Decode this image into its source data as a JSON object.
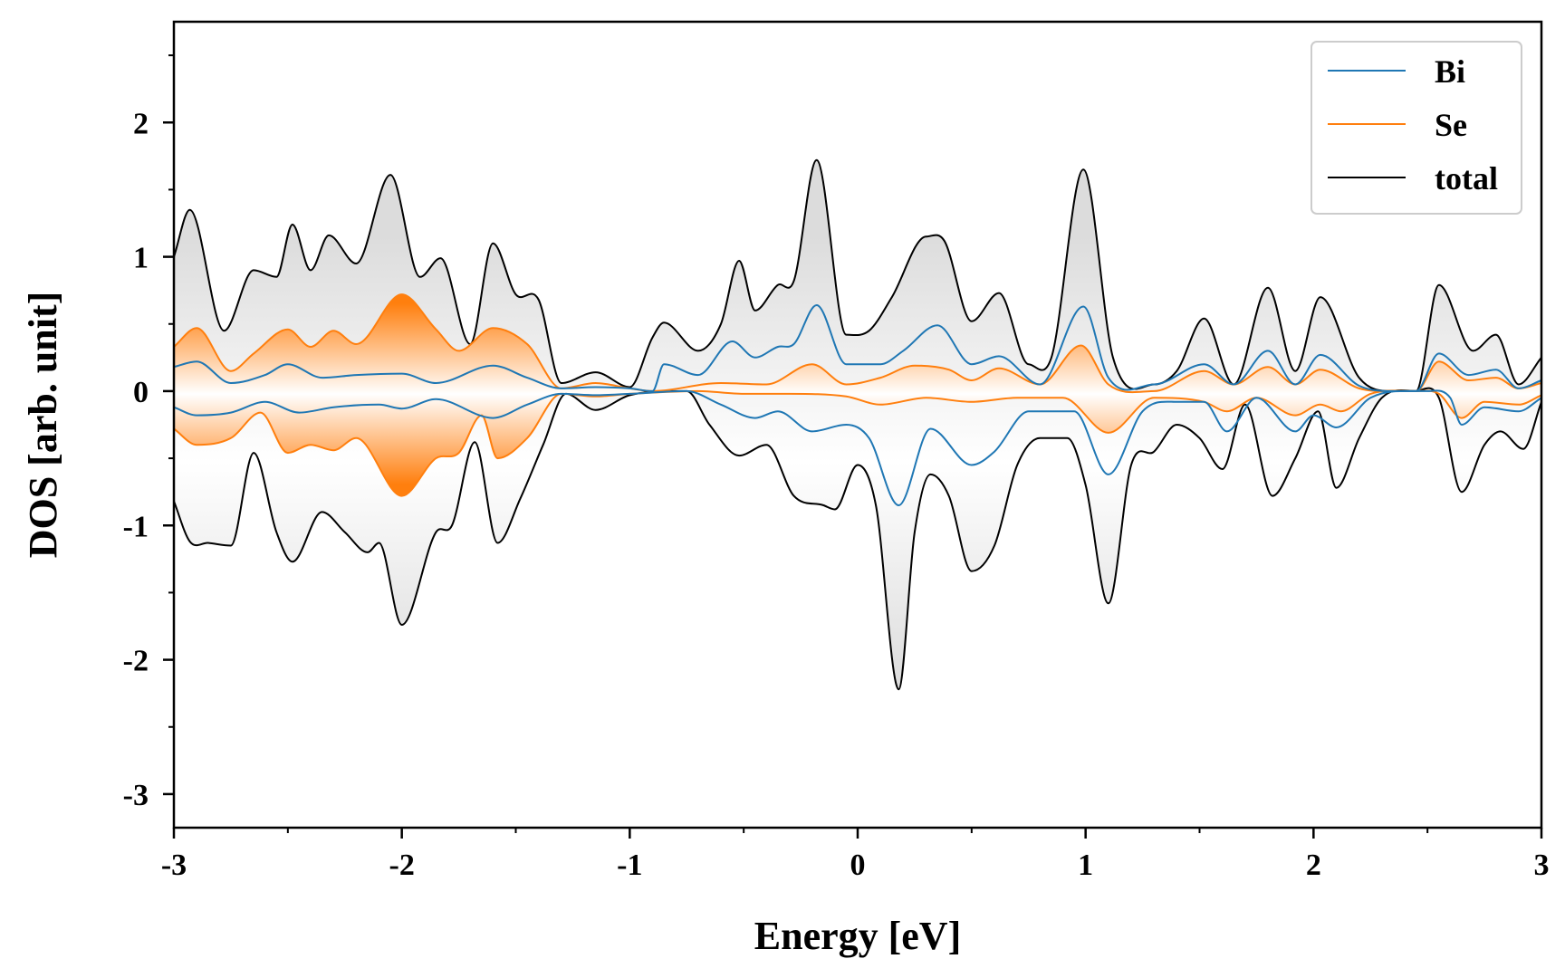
{
  "chart_data": {
    "type": "line",
    "xlabel": "Energy [eV]",
    "ylabel": "DOS [arb. unit]",
    "xlim": [
      -3,
      3
    ],
    "ylim": [
      -3.25,
      2.75
    ],
    "xticks": [
      -3,
      -2,
      -1,
      0,
      1,
      2,
      3
    ],
    "xtick_labels": [
      "-3",
      "-2",
      "-1",
      "0",
      "1",
      "2",
      "3"
    ],
    "yticks": [
      2,
      1,
      0,
      -1,
      -2,
      -3
    ],
    "ytick_labels": [
      "2",
      "1",
      "0",
      "-1",
      "-2",
      "-3"
    ],
    "legend_position": "top-right",
    "grid": false,
    "series": [
      {
        "name": "Bi",
        "color": "#1f77b4",
        "up": [
          [
            -3,
            0.18
          ],
          [
            -2.9,
            0.22
          ],
          [
            -2.75,
            0.06
          ],
          [
            -2.6,
            0.12
          ],
          [
            -2.5,
            0.2
          ],
          [
            -2.35,
            0.1
          ],
          [
            -2.2,
            0.12
          ],
          [
            -2.0,
            0.13
          ],
          [
            -1.85,
            0.06
          ],
          [
            -1.6,
            0.19
          ],
          [
            -1.45,
            0.1
          ],
          [
            -1.3,
            0.02
          ],
          [
            -1.15,
            0.03
          ],
          [
            -1.0,
            0.02
          ],
          [
            -0.9,
            0.0
          ],
          [
            -0.85,
            0.2
          ],
          [
            -0.7,
            0.12
          ],
          [
            -0.55,
            0.37
          ],
          [
            -0.45,
            0.25
          ],
          [
            -0.35,
            0.33
          ],
          [
            -0.28,
            0.35
          ],
          [
            -0.18,
            0.64
          ],
          [
            -0.05,
            0.2
          ],
          [
            0.1,
            0.2
          ],
          [
            0.2,
            0.3
          ],
          [
            0.35,
            0.49
          ],
          [
            0.5,
            0.2
          ],
          [
            0.62,
            0.26
          ],
          [
            0.8,
            0.05
          ],
          [
            0.99,
            0.63
          ],
          [
            1.1,
            0.1
          ],
          [
            1.3,
            0.05
          ],
          [
            1.52,
            0.2
          ],
          [
            1.65,
            0.05
          ],
          [
            1.8,
            0.3
          ],
          [
            1.92,
            0.05
          ],
          [
            2.03,
            0.27
          ],
          [
            2.2,
            0.04
          ],
          [
            2.35,
            0.0
          ],
          [
            2.45,
            0.0
          ],
          [
            2.55,
            0.28
          ],
          [
            2.68,
            0.12
          ],
          [
            2.8,
            0.16
          ],
          [
            2.9,
            0.02
          ],
          [
            3.0,
            0.08
          ]
        ],
        "down": [
          [
            -3,
            -0.12
          ],
          [
            -2.9,
            -0.18
          ],
          [
            -2.75,
            -0.16
          ],
          [
            -2.6,
            -0.08
          ],
          [
            -2.45,
            -0.16
          ],
          [
            -2.3,
            -0.12
          ],
          [
            -2.1,
            -0.1
          ],
          [
            -2.0,
            -0.13
          ],
          [
            -1.85,
            -0.06
          ],
          [
            -1.6,
            -0.2
          ],
          [
            -1.45,
            -0.1
          ],
          [
            -1.3,
            -0.02
          ],
          [
            -1.15,
            -0.03
          ],
          [
            -1.0,
            -0.02
          ],
          [
            -0.75,
            0.0
          ],
          [
            -0.6,
            -0.1
          ],
          [
            -0.45,
            -0.2
          ],
          [
            -0.35,
            -0.15
          ],
          [
            -0.2,
            -0.3
          ],
          [
            -0.05,
            -0.25
          ],
          [
            0.05,
            -0.35
          ],
          [
            0.18,
            -0.85
          ],
          [
            0.32,
            -0.28
          ],
          [
            0.5,
            -0.55
          ],
          [
            0.6,
            -0.45
          ],
          [
            0.75,
            -0.15
          ],
          [
            0.95,
            -0.15
          ],
          [
            1.1,
            -0.62
          ],
          [
            1.25,
            -0.15
          ],
          [
            1.4,
            -0.08
          ],
          [
            1.52,
            -0.08
          ],
          [
            1.62,
            -0.3
          ],
          [
            1.75,
            -0.05
          ],
          [
            1.92,
            -0.3
          ],
          [
            2.0,
            -0.18
          ],
          [
            2.1,
            -0.27
          ],
          [
            2.25,
            -0.05
          ],
          [
            2.4,
            0.0
          ],
          [
            2.5,
            0.0
          ],
          [
            2.6,
            -0.05
          ],
          [
            2.65,
            -0.25
          ],
          [
            2.75,
            -0.12
          ],
          [
            2.9,
            -0.15
          ],
          [
            3.0,
            -0.05
          ]
        ]
      },
      {
        "name": "Se",
        "color": "#ff7f0e",
        "up": [
          [
            -3,
            0.33
          ],
          [
            -2.9,
            0.47
          ],
          [
            -2.75,
            0.15
          ],
          [
            -2.65,
            0.28
          ],
          [
            -2.5,
            0.46
          ],
          [
            -2.4,
            0.33
          ],
          [
            -2.3,
            0.45
          ],
          [
            -2.2,
            0.35
          ],
          [
            -2.0,
            0.72
          ],
          [
            -1.85,
            0.46
          ],
          [
            -1.75,
            0.3
          ],
          [
            -1.6,
            0.47
          ],
          [
            -1.45,
            0.35
          ],
          [
            -1.3,
            0.02
          ],
          [
            -1.15,
            0.06
          ],
          [
            -1.0,
            0.02
          ],
          [
            -0.9,
            0.0
          ],
          [
            -0.6,
            0.06
          ],
          [
            -0.4,
            0.05
          ],
          [
            -0.2,
            0.2
          ],
          [
            -0.05,
            0.05
          ],
          [
            0.1,
            0.1
          ],
          [
            0.25,
            0.19
          ],
          [
            0.4,
            0.16
          ],
          [
            0.5,
            0.08
          ],
          [
            0.62,
            0.17
          ],
          [
            0.8,
            0.05
          ],
          [
            0.98,
            0.34
          ],
          [
            1.1,
            0.05
          ],
          [
            1.3,
            0.0
          ],
          [
            1.52,
            0.15
          ],
          [
            1.65,
            0.05
          ],
          [
            1.8,
            0.18
          ],
          [
            1.92,
            0.05
          ],
          [
            2.03,
            0.16
          ],
          [
            2.2,
            0.02
          ],
          [
            2.35,
            0.0
          ],
          [
            2.45,
            0.0
          ],
          [
            2.55,
            0.22
          ],
          [
            2.68,
            0.08
          ],
          [
            2.8,
            0.1
          ],
          [
            2.9,
            0.02
          ],
          [
            3.0,
            0.06
          ]
        ],
        "down": [
          [
            -3,
            -0.28
          ],
          [
            -2.9,
            -0.4
          ],
          [
            -2.75,
            -0.35
          ],
          [
            -2.62,
            -0.16
          ],
          [
            -2.5,
            -0.46
          ],
          [
            -2.4,
            -0.4
          ],
          [
            -2.3,
            -0.44
          ],
          [
            -2.2,
            -0.35
          ],
          [
            -2.0,
            -0.78
          ],
          [
            -1.85,
            -0.5
          ],
          [
            -1.75,
            -0.46
          ],
          [
            -1.65,
            -0.18
          ],
          [
            -1.58,
            -0.5
          ],
          [
            -1.45,
            -0.35
          ],
          [
            -1.3,
            -0.02
          ],
          [
            -1.15,
            -0.04
          ],
          [
            -1.0,
            -0.02
          ],
          [
            -0.7,
            0.0
          ],
          [
            -0.5,
            -0.02
          ],
          [
            -0.3,
            -0.02
          ],
          [
            -0.05,
            -0.04
          ],
          [
            0.1,
            -0.1
          ],
          [
            0.3,
            -0.05
          ],
          [
            0.5,
            -0.08
          ],
          [
            0.7,
            -0.05
          ],
          [
            0.9,
            -0.05
          ],
          [
            1.1,
            -0.31
          ],
          [
            1.3,
            -0.05
          ],
          [
            1.52,
            -0.08
          ],
          [
            1.62,
            -0.15
          ],
          [
            1.75,
            -0.05
          ],
          [
            1.92,
            -0.18
          ],
          [
            2.03,
            -0.1
          ],
          [
            2.12,
            -0.15
          ],
          [
            2.25,
            -0.02
          ],
          [
            2.45,
            0.0
          ],
          [
            2.55,
            -0.02
          ],
          [
            2.65,
            -0.2
          ],
          [
            2.75,
            -0.08
          ],
          [
            2.9,
            -0.1
          ],
          [
            3.0,
            -0.03
          ]
        ]
      },
      {
        "name": "total",
        "color": "#000000",
        "up": [
          [
            -3,
            1.0
          ],
          [
            -2.93,
            1.35
          ],
          [
            -2.78,
            0.45
          ],
          [
            -2.65,
            0.9
          ],
          [
            -2.55,
            0.85
          ],
          [
            -2.48,
            1.24
          ],
          [
            -2.4,
            0.9
          ],
          [
            -2.32,
            1.16
          ],
          [
            -2.2,
            0.95
          ],
          [
            -2.05,
            1.61
          ],
          [
            -1.92,
            0.85
          ],
          [
            -1.83,
            0.99
          ],
          [
            -1.7,
            0.35
          ],
          [
            -1.6,
            1.1
          ],
          [
            -1.5,
            0.72
          ],
          [
            -1.4,
            0.68
          ],
          [
            -1.3,
            0.06
          ],
          [
            -1.15,
            0.14
          ],
          [
            -1.0,
            0.03
          ],
          [
            -0.9,
            0.4
          ],
          [
            -0.85,
            0.51
          ],
          [
            -0.7,
            0.3
          ],
          [
            -0.6,
            0.5
          ],
          [
            -0.52,
            0.97
          ],
          [
            -0.45,
            0.6
          ],
          [
            -0.35,
            0.79
          ],
          [
            -0.28,
            0.82
          ],
          [
            -0.18,
            1.72
          ],
          [
            -0.05,
            0.42
          ],
          [
            0.05,
            0.45
          ],
          [
            0.15,
            0.7
          ],
          [
            0.3,
            1.15
          ],
          [
            0.38,
            1.12
          ],
          [
            0.5,
            0.52
          ],
          [
            0.62,
            0.73
          ],
          [
            0.75,
            0.2
          ],
          [
            0.85,
            0.25
          ],
          [
            0.99,
            1.65
          ],
          [
            1.12,
            0.25
          ],
          [
            1.3,
            0.05
          ],
          [
            1.4,
            0.15
          ],
          [
            1.52,
            0.54
          ],
          [
            1.65,
            0.05
          ],
          [
            1.8,
            0.77
          ],
          [
            1.92,
            0.15
          ],
          [
            2.03,
            0.7
          ],
          [
            2.2,
            0.1
          ],
          [
            2.35,
            0.0
          ],
          [
            2.45,
            0.0
          ],
          [
            2.55,
            0.79
          ],
          [
            2.7,
            0.3
          ],
          [
            2.8,
            0.42
          ],
          [
            2.9,
            0.05
          ],
          [
            3.0,
            0.25
          ]
        ],
        "down": [
          [
            -3,
            -0.82
          ],
          [
            -2.93,
            -1.12
          ],
          [
            -2.85,
            -1.13
          ],
          [
            -2.75,
            -1.15
          ],
          [
            -2.65,
            -0.46
          ],
          [
            -2.55,
            -1.05
          ],
          [
            -2.48,
            -1.27
          ],
          [
            -2.35,
            -0.9
          ],
          [
            -2.25,
            -1.05
          ],
          [
            -2.15,
            -1.2
          ],
          [
            -2.1,
            -1.13
          ],
          [
            -2.0,
            -1.74
          ],
          [
            -1.85,
            -1.05
          ],
          [
            -1.78,
            -1.0
          ],
          [
            -1.68,
            -0.38
          ],
          [
            -1.58,
            -1.13
          ],
          [
            -1.48,
            -0.8
          ],
          [
            -1.38,
            -0.4
          ],
          [
            -1.28,
            -0.02
          ],
          [
            -1.15,
            -0.14
          ],
          [
            -1.0,
            -0.03
          ],
          [
            -0.75,
            0.0
          ],
          [
            -0.65,
            -0.25
          ],
          [
            -0.52,
            -0.48
          ],
          [
            -0.4,
            -0.4
          ],
          [
            -0.28,
            -0.78
          ],
          [
            -0.15,
            -0.85
          ],
          [
            -0.1,
            -0.88
          ],
          [
            0.0,
            -0.55
          ],
          [
            0.08,
            -0.85
          ],
          [
            0.18,
            -2.22
          ],
          [
            0.25,
            -1.05
          ],
          [
            0.32,
            -0.62
          ],
          [
            0.4,
            -0.78
          ],
          [
            0.5,
            -1.34
          ],
          [
            0.6,
            -1.15
          ],
          [
            0.7,
            -0.55
          ],
          [
            0.8,
            -0.35
          ],
          [
            0.92,
            -0.35
          ],
          [
            1.0,
            -0.7
          ],
          [
            1.1,
            -1.58
          ],
          [
            1.2,
            -0.55
          ],
          [
            1.3,
            -0.45
          ],
          [
            1.4,
            -0.25
          ],
          [
            1.5,
            -0.35
          ],
          [
            1.6,
            -0.58
          ],
          [
            1.7,
            -0.1
          ],
          [
            1.82,
            -0.78
          ],
          [
            1.92,
            -0.5
          ],
          [
            2.02,
            -0.15
          ],
          [
            2.1,
            -0.72
          ],
          [
            2.2,
            -0.35
          ],
          [
            2.3,
            -0.05
          ],
          [
            2.45,
            0.0
          ],
          [
            2.55,
            -0.05
          ],
          [
            2.65,
            -0.75
          ],
          [
            2.75,
            -0.4
          ],
          [
            2.82,
            -0.3
          ],
          [
            2.92,
            -0.43
          ],
          [
            3.0,
            -0.08
          ]
        ]
      }
    ]
  }
}
